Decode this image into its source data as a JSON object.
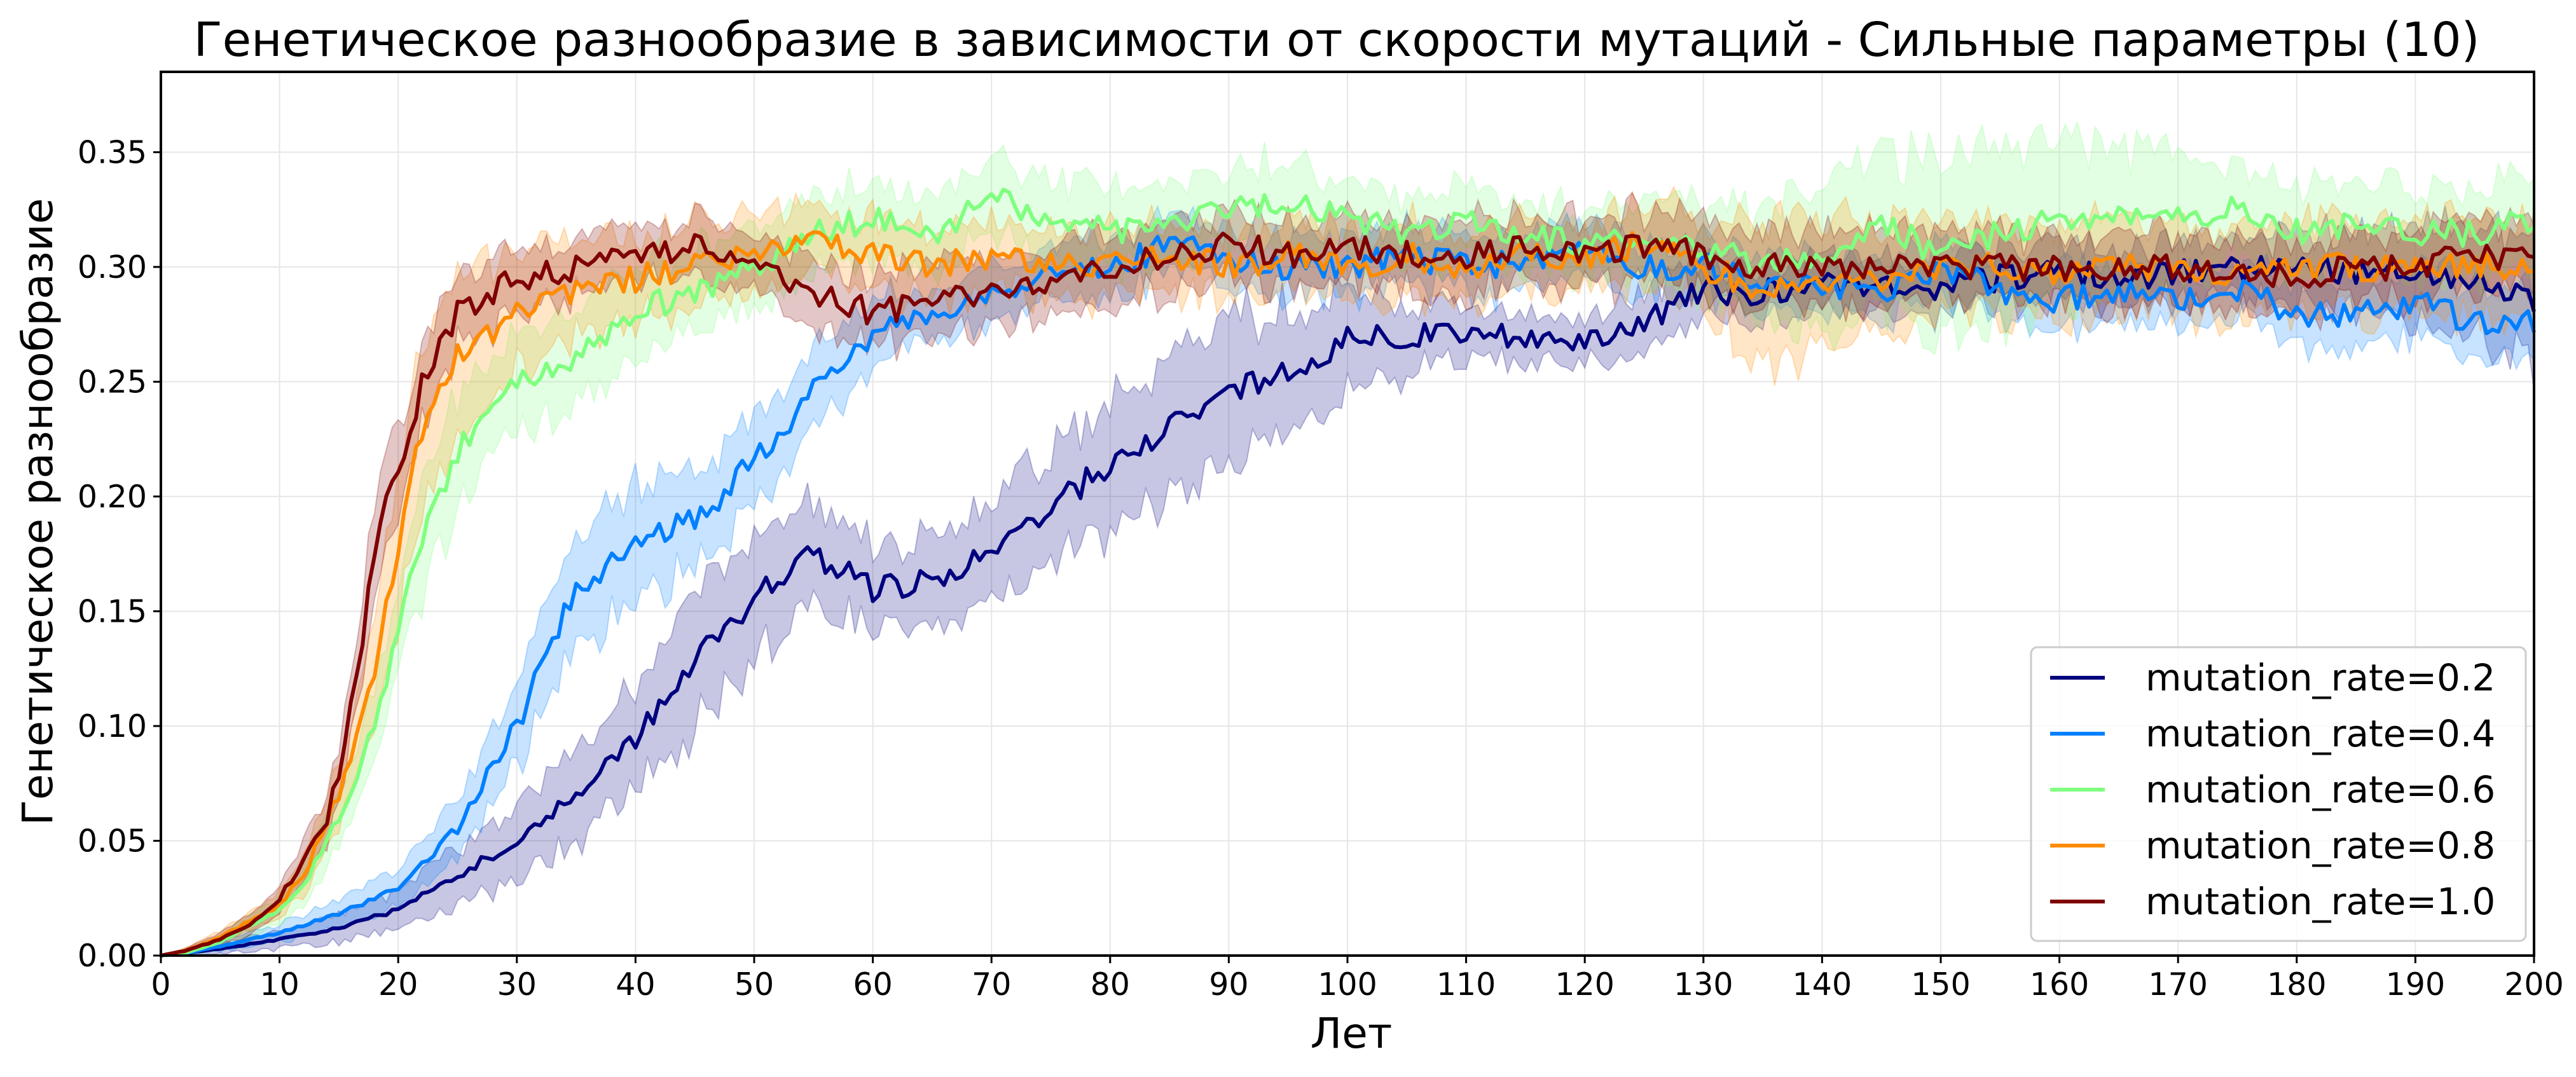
{
  "chart_data": {
    "type": "line",
    "title": "Генетическое разнообразие в зависимости от скорости мутаций - Сильные параметры (10)",
    "xlabel": "Лет",
    "ylabel": "Генетическое разнообразие",
    "xlim": [
      0,
      200
    ],
    "ylim": [
      0,
      0.385
    ],
    "xticks": [
      0,
      10,
      20,
      30,
      40,
      50,
      60,
      70,
      80,
      90,
      100,
      110,
      120,
      130,
      140,
      150,
      160,
      170,
      180,
      190,
      200
    ],
    "xtick_labels": [
      "0",
      "10",
      "20",
      "30",
      "40",
      "50",
      "60",
      "70",
      "80",
      "90",
      "100",
      "110",
      "120",
      "130",
      "140",
      "150",
      "160",
      "170",
      "180",
      "190",
      "200"
    ],
    "yticks": [
      0,
      0.05,
      0.1,
      0.15,
      0.2,
      0.25,
      0.3,
      0.35
    ],
    "ytick_labels": [
      "0.00",
      "0.05",
      "0.10",
      "0.15",
      "0.20",
      "0.25",
      "0.30",
      "0.35"
    ],
    "grid": true,
    "legend_position": "lower right",
    "band": "shaded area around each line",
    "series": [
      {
        "name": "mutation_rate=0.2",
        "color": "#00007f",
        "x": [
          0,
          2,
          5,
          10,
          15,
          20,
          25,
          30,
          35,
          40,
          45,
          50,
          55,
          60,
          65,
          70,
          75,
          80,
          85,
          90,
          95,
          100,
          105,
          110,
          115,
          120,
          125,
          130,
          135,
          140,
          145,
          150,
          155,
          160,
          165,
          170,
          175,
          180,
          185,
          190,
          195,
          200
        ],
        "y": [
          0.0,
          0.001,
          0.003,
          0.007,
          0.012,
          0.02,
          0.035,
          0.05,
          0.07,
          0.095,
          0.13,
          0.155,
          0.175,
          0.16,
          0.163,
          0.175,
          0.195,
          0.215,
          0.23,
          0.245,
          0.255,
          0.268,
          0.27,
          0.272,
          0.27,
          0.265,
          0.275,
          0.29,
          0.288,
          0.295,
          0.29,
          0.292,
          0.295,
          0.298,
          0.295,
          0.298,
          0.3,
          0.3,
          0.298,
          0.3,
          0.295,
          0.285
        ],
        "spread": [
          0.0,
          0.001,
          0.002,
          0.004,
          0.006,
          0.008,
          0.012,
          0.016,
          0.02,
          0.025,
          0.028,
          0.025,
          0.022,
          0.018,
          0.02,
          0.022,
          0.025,
          0.028,
          0.03,
          0.03,
          0.028,
          0.022,
          0.015,
          0.012,
          0.01,
          0.01,
          0.012,
          0.012,
          0.012,
          0.012,
          0.012,
          0.012,
          0.012,
          0.012,
          0.012,
          0.012,
          0.012,
          0.015,
          0.015,
          0.02,
          0.025,
          0.03
        ]
      },
      {
        "name": "mutation_rate=0.4",
        "color": "#007fff",
        "x": [
          0,
          2,
          5,
          10,
          15,
          20,
          25,
          30,
          35,
          40,
          45,
          50,
          55,
          60,
          65,
          70,
          75,
          80,
          85,
          90,
          95,
          100,
          105,
          110,
          115,
          120,
          125,
          130,
          135,
          140,
          145,
          150,
          155,
          160,
          165,
          170,
          175,
          180,
          185,
          190,
          195,
          200
        ],
        "y": [
          0.0,
          0.001,
          0.004,
          0.01,
          0.018,
          0.03,
          0.055,
          0.1,
          0.16,
          0.18,
          0.19,
          0.215,
          0.245,
          0.27,
          0.28,
          0.29,
          0.295,
          0.3,
          0.31,
          0.305,
          0.3,
          0.3,
          0.305,
          0.3,
          0.302,
          0.305,
          0.3,
          0.3,
          0.295,
          0.29,
          0.29,
          0.3,
          0.29,
          0.285,
          0.29,
          0.285,
          0.29,
          0.28,
          0.28,
          0.285,
          0.275,
          0.275
        ],
        "spread": [
          0.0,
          0.001,
          0.002,
          0.004,
          0.006,
          0.008,
          0.012,
          0.02,
          0.025,
          0.025,
          0.022,
          0.02,
          0.018,
          0.015,
          0.012,
          0.012,
          0.012,
          0.012,
          0.012,
          0.012,
          0.012,
          0.012,
          0.012,
          0.012,
          0.012,
          0.012,
          0.012,
          0.012,
          0.012,
          0.012,
          0.012,
          0.012,
          0.012,
          0.012,
          0.012,
          0.012,
          0.012,
          0.012,
          0.015,
          0.015,
          0.015,
          0.015
        ]
      },
      {
        "name": "mutation_rate=0.6",
        "color": "#7fff7f",
        "x": [
          0,
          2,
          5,
          10,
          12,
          15,
          18,
          20,
          22,
          25,
          28,
          30,
          35,
          40,
          45,
          50,
          55,
          60,
          65,
          70,
          75,
          80,
          85,
          90,
          95,
          100,
          105,
          110,
          115,
          120,
          125,
          130,
          135,
          140,
          145,
          150,
          155,
          160,
          165,
          170,
          175,
          180,
          185,
          190,
          195,
          200
        ],
        "y": [
          0.0,
          0.001,
          0.006,
          0.02,
          0.03,
          0.06,
          0.1,
          0.14,
          0.18,
          0.22,
          0.24,
          0.25,
          0.26,
          0.28,
          0.29,
          0.3,
          0.315,
          0.32,
          0.315,
          0.33,
          0.32,
          0.315,
          0.32,
          0.325,
          0.33,
          0.32,
          0.315,
          0.32,
          0.315,
          0.31,
          0.315,
          0.31,
          0.3,
          0.305,
          0.32,
          0.305,
          0.315,
          0.32,
          0.32,
          0.32,
          0.325,
          0.315,
          0.32,
          0.315,
          0.315,
          0.32
        ],
        "spread": [
          0.0,
          0.001,
          0.003,
          0.006,
          0.008,
          0.012,
          0.015,
          0.02,
          0.025,
          0.025,
          0.022,
          0.02,
          0.02,
          0.018,
          0.018,
          0.018,
          0.018,
          0.018,
          0.015,
          0.018,
          0.018,
          0.018,
          0.018,
          0.018,
          0.018,
          0.015,
          0.015,
          0.015,
          0.015,
          0.015,
          0.018,
          0.02,
          0.025,
          0.03,
          0.035,
          0.04,
          0.04,
          0.035,
          0.03,
          0.025,
          0.02,
          0.02,
          0.018,
          0.018,
          0.018,
          0.02
        ]
      },
      {
        "name": "mutation_rate=0.8",
        "color": "#ff8c00",
        "x": [
          0,
          2,
          5,
          10,
          12,
          15,
          18,
          20,
          22,
          25,
          28,
          30,
          35,
          40,
          45,
          50,
          55,
          60,
          65,
          70,
          75,
          80,
          85,
          90,
          95,
          100,
          105,
          110,
          115,
          120,
          125,
          130,
          135,
          140,
          145,
          150,
          155,
          160,
          165,
          170,
          175,
          180,
          185,
          190,
          195,
          200
        ],
        "y": [
          0.0,
          0.002,
          0.008,
          0.022,
          0.035,
          0.07,
          0.12,
          0.18,
          0.23,
          0.26,
          0.27,
          0.28,
          0.29,
          0.295,
          0.3,
          0.305,
          0.31,
          0.305,
          0.3,
          0.305,
          0.3,
          0.3,
          0.305,
          0.3,
          0.305,
          0.3,
          0.305,
          0.3,
          0.305,
          0.305,
          0.31,
          0.3,
          0.29,
          0.295,
          0.295,
          0.3,
          0.3,
          0.295,
          0.3,
          0.3,
          0.295,
          0.3,
          0.3,
          0.3,
          0.3,
          0.3
        ],
        "spread": [
          0.0,
          0.001,
          0.003,
          0.006,
          0.008,
          0.012,
          0.02,
          0.03,
          0.035,
          0.035,
          0.03,
          0.025,
          0.02,
          0.018,
          0.018,
          0.018,
          0.015,
          0.015,
          0.015,
          0.015,
          0.015,
          0.015,
          0.015,
          0.015,
          0.015,
          0.015,
          0.015,
          0.015,
          0.015,
          0.015,
          0.018,
          0.02,
          0.03,
          0.03,
          0.025,
          0.02,
          0.02,
          0.02,
          0.02,
          0.02,
          0.02,
          0.02,
          0.02,
          0.02,
          0.02,
          0.02
        ]
      },
      {
        "name": "mutation_rate=1.0",
        "color": "#7f0000",
        "x": [
          0,
          2,
          5,
          8,
          10,
          12,
          14,
          15,
          16,
          18,
          19,
          20,
          22,
          24,
          25,
          28,
          30,
          35,
          40,
          45,
          50,
          55,
          60,
          65,
          70,
          75,
          80,
          85,
          90,
          95,
          100,
          105,
          110,
          115,
          120,
          125,
          130,
          135,
          140,
          145,
          150,
          155,
          160,
          165,
          170,
          175,
          180,
          185,
          190,
          195,
          200
        ],
        "y": [
          0.0,
          0.002,
          0.007,
          0.015,
          0.025,
          0.04,
          0.06,
          0.08,
          0.11,
          0.17,
          0.2,
          0.21,
          0.25,
          0.27,
          0.28,
          0.29,
          0.295,
          0.3,
          0.305,
          0.31,
          0.3,
          0.29,
          0.28,
          0.285,
          0.29,
          0.295,
          0.3,
          0.305,
          0.31,
          0.305,
          0.31,
          0.305,
          0.305,
          0.31,
          0.305,
          0.31,
          0.305,
          0.3,
          0.3,
          0.3,
          0.3,
          0.3,
          0.3,
          0.3,
          0.3,
          0.3,
          0.295,
          0.3,
          0.3,
          0.305,
          0.305
        ],
        "spread": [
          0.0,
          0.001,
          0.003,
          0.005,
          0.006,
          0.008,
          0.01,
          0.012,
          0.015,
          0.02,
          0.02,
          0.02,
          0.018,
          0.015,
          0.015,
          0.015,
          0.012,
          0.012,
          0.012,
          0.012,
          0.012,
          0.015,
          0.015,
          0.015,
          0.015,
          0.015,
          0.015,
          0.015,
          0.015,
          0.015,
          0.015,
          0.015,
          0.015,
          0.015,
          0.015,
          0.015,
          0.015,
          0.015,
          0.015,
          0.015,
          0.015,
          0.015,
          0.015,
          0.015,
          0.015,
          0.015,
          0.015,
          0.015,
          0.015,
          0.015,
          0.015
        ]
      }
    ]
  }
}
